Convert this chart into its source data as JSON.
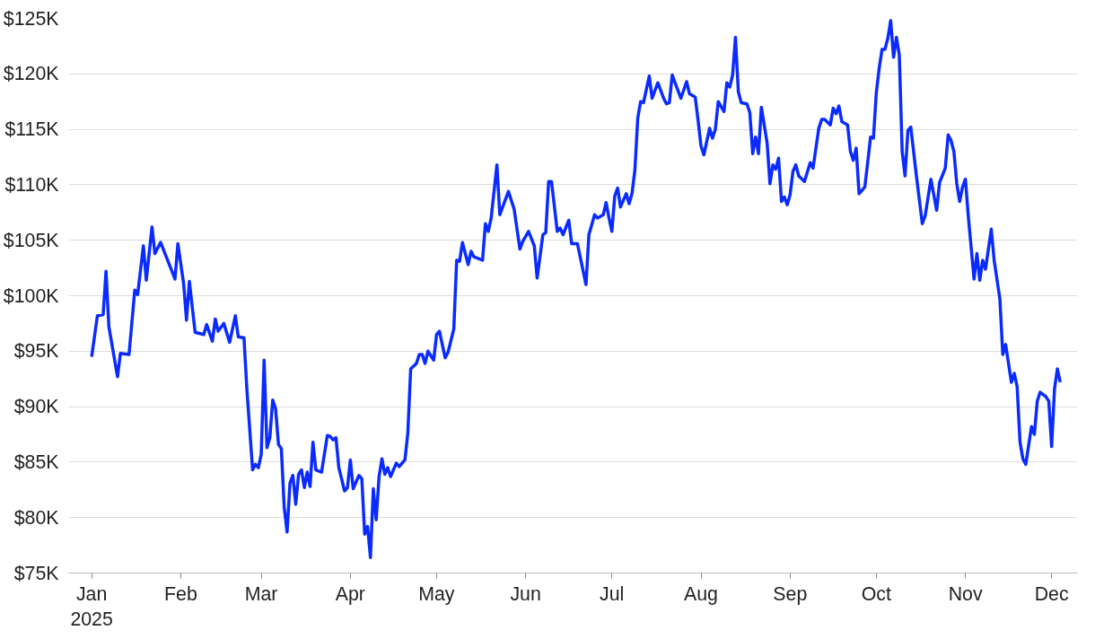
{
  "chart_data": {
    "type": "line",
    "xlim": [
      "2024-12-24",
      "2025-12-10"
    ],
    "ylim": [
      75,
      125
    ],
    "xticks": [
      {
        "value": "2025-01-01",
        "label": "Jan\n2025"
      },
      {
        "value": "2025-02-01",
        "label": "Feb"
      },
      {
        "value": "2025-03-01",
        "label": "Mar"
      },
      {
        "value": "2025-04-01",
        "label": "Apr"
      },
      {
        "value": "2025-05-01",
        "label": "May"
      },
      {
        "value": "2025-06-01",
        "label": "Jun"
      },
      {
        "value": "2025-07-01",
        "label": "Jul"
      },
      {
        "value": "2025-08-01",
        "label": "Aug"
      },
      {
        "value": "2025-09-01",
        "label": "Sep"
      },
      {
        "value": "2025-10-01",
        "label": "Oct"
      },
      {
        "value": "2025-11-01",
        "label": "Nov"
      },
      {
        "value": "2025-12-01",
        "label": "Dec"
      }
    ],
    "yticks": [
      {
        "value": 75,
        "label": "$75K"
      },
      {
        "value": 80,
        "label": "$80K"
      },
      {
        "value": 85,
        "label": "$85K"
      },
      {
        "value": 90,
        "label": "$90K"
      },
      {
        "value": 95,
        "label": "$95K"
      },
      {
        "value": 100,
        "label": "$100K"
      },
      {
        "value": 105,
        "label": "$105K"
      },
      {
        "value": 110,
        "label": "$110K"
      },
      {
        "value": 115,
        "label": "$115K"
      },
      {
        "value": 120,
        "label": "$120K"
      },
      {
        "value": 125,
        "label": "$125K"
      }
    ],
    "grid": "y",
    "marker": "none",
    "line_style": "solid",
    "series": [
      {
        "color": "#0a2bff",
        "x": [
          "2025-01-01",
          "2025-01-03",
          "2025-01-05",
          "2025-01-06",
          "2025-01-07",
          "2025-01-10",
          "2025-01-11",
          "2025-01-14",
          "2025-01-16",
          "2025-01-17",
          "2025-01-19",
          "2025-01-20",
          "2025-01-22",
          "2025-01-23",
          "2025-01-25",
          "2025-01-30",
          "2025-01-31",
          "2025-02-02",
          "2025-02-03",
          "2025-02-04",
          "2025-02-06",
          "2025-02-09",
          "2025-02-10",
          "2025-02-12",
          "2025-02-13",
          "2025-02-14",
          "2025-02-16",
          "2025-02-18",
          "2025-02-20",
          "2025-02-21",
          "2025-02-23",
          "2025-02-24",
          "2025-02-26",
          "2025-02-27",
          "2025-02-28",
          "2025-03-01",
          "2025-03-02",
          "2025-03-03",
          "2025-03-04",
          "2025-03-05",
          "2025-03-06",
          "2025-03-07",
          "2025-03-08",
          "2025-03-09",
          "2025-03-10",
          "2025-03-11",
          "2025-03-12",
          "2025-03-13",
          "2025-03-14",
          "2025-03-15",
          "2025-03-16",
          "2025-03-17",
          "2025-03-18",
          "2025-03-19",
          "2025-03-20",
          "2025-03-22",
          "2025-03-24",
          "2025-03-25",
          "2025-03-26",
          "2025-03-27",
          "2025-03-28",
          "2025-03-30",
          "2025-03-31",
          "2025-04-01",
          "2025-04-02",
          "2025-04-04",
          "2025-04-05",
          "2025-04-06",
          "2025-04-07",
          "2025-04-08",
          "2025-04-09",
          "2025-04-10",
          "2025-04-11",
          "2025-04-12",
          "2025-04-13",
          "2025-04-14",
          "2025-04-15",
          "2025-04-17",
          "2025-04-18",
          "2025-04-20",
          "2025-04-21",
          "2025-04-22",
          "2025-04-24",
          "2025-04-25",
          "2025-04-26",
          "2025-04-27",
          "2025-04-28",
          "2025-04-30",
          "2025-05-01",
          "2025-05-02",
          "2025-05-04",
          "2025-05-05",
          "2025-05-07",
          "2025-05-08",
          "2025-05-09",
          "2025-05-10",
          "2025-05-12",
          "2025-05-13",
          "2025-05-14",
          "2025-05-17",
          "2025-05-18",
          "2025-05-19",
          "2025-05-20",
          "2025-05-22",
          "2025-05-23",
          "2025-05-26",
          "2025-05-28",
          "2025-05-30",
          "2025-05-31",
          "2025-06-02",
          "2025-06-04",
          "2025-06-05",
          "2025-06-07",
          "2025-06-08",
          "2025-06-09",
          "2025-06-10",
          "2025-06-12",
          "2025-06-13",
          "2025-06-14",
          "2025-06-16",
          "2025-06-17",
          "2025-06-19",
          "2025-06-22",
          "2025-06-23",
          "2025-06-25",
          "2025-06-26",
          "2025-06-28",
          "2025-06-29",
          "2025-06-30",
          "2025-07-01",
          "2025-07-02",
          "2025-07-03",
          "2025-07-04",
          "2025-07-06",
          "2025-07-07",
          "2025-07-08",
          "2025-07-09",
          "2025-07-10",
          "2025-07-11",
          "2025-07-12",
          "2025-07-14",
          "2025-07-15",
          "2025-07-17",
          "2025-07-19",
          "2025-07-20",
          "2025-07-21",
          "2025-07-22",
          "2025-07-25",
          "2025-07-27",
          "2025-07-28",
          "2025-07-30",
          "2025-07-31",
          "2025-08-01",
          "2025-08-02",
          "2025-08-04",
          "2025-08-05",
          "2025-08-06",
          "2025-08-07",
          "2025-08-09",
          "2025-08-10",
          "2025-08-11",
          "2025-08-12",
          "2025-08-13",
          "2025-08-14",
          "2025-08-15",
          "2025-08-17",
          "2025-08-18",
          "2025-08-19",
          "2025-08-20",
          "2025-08-21",
          "2025-08-22",
          "2025-08-24",
          "2025-08-25",
          "2025-08-26",
          "2025-08-27",
          "2025-08-28",
          "2025-08-29",
          "2025-08-30",
          "2025-08-31",
          "2025-09-01",
          "2025-09-02",
          "2025-09-03",
          "2025-09-04",
          "2025-09-06",
          "2025-09-08",
          "2025-09-09",
          "2025-09-11",
          "2025-09-12",
          "2025-09-13",
          "2025-09-15",
          "2025-09-16",
          "2025-09-17",
          "2025-09-18",
          "2025-09-19",
          "2025-09-21",
          "2025-09-22",
          "2025-09-23",
          "2025-09-24",
          "2025-09-25",
          "2025-09-27",
          "2025-09-28",
          "2025-09-29",
          "2025-09-30",
          "2025-10-01",
          "2025-10-02",
          "2025-10-03",
          "2025-10-04",
          "2025-10-05",
          "2025-10-06",
          "2025-10-07",
          "2025-10-08",
          "2025-10-09",
          "2025-10-10",
          "2025-10-11",
          "2025-10-12",
          "2025-10-13",
          "2025-10-15",
          "2025-10-17",
          "2025-10-18",
          "2025-10-20",
          "2025-10-22",
          "2025-10-23",
          "2025-10-25",
          "2025-10-26",
          "2025-10-27",
          "2025-10-28",
          "2025-10-29",
          "2025-10-30",
          "2025-10-31",
          "2025-11-01",
          "2025-11-02",
          "2025-11-04",
          "2025-11-05",
          "2025-11-06",
          "2025-11-07",
          "2025-11-08",
          "2025-11-10",
          "2025-11-11",
          "2025-11-13",
          "2025-11-14",
          "2025-11-15",
          "2025-11-17",
          "2025-11-18",
          "2025-11-19",
          "2025-11-20",
          "2025-11-21",
          "2025-11-22",
          "2025-11-24",
          "2025-11-25",
          "2025-11-26",
          "2025-11-27",
          "2025-11-29",
          "2025-11-30",
          "2025-12-01",
          "2025-12-02",
          "2025-12-03",
          "2025-12-04"
        ],
        "values": [
          94.5,
          98.2,
          98.3,
          102.2,
          97.2,
          92.7,
          94.8,
          94.7,
          100.5,
          100.1,
          104.5,
          101.4,
          106.2,
          103.8,
          104.8,
          101.5,
          104.7,
          101.1,
          97.8,
          101.3,
          96.7,
          96.5,
          97.4,
          95.9,
          97.9,
          96.8,
          97.5,
          95.8,
          98.2,
          96.3,
          96.2,
          91.6,
          84.3,
          84.8,
          84.5,
          85.7,
          94.2,
          86.3,
          87.2,
          90.6,
          89.8,
          86.6,
          86.2,
          80.9,
          78.7,
          83.1,
          83.8,
          81.2,
          83.9,
          84.3,
          82.7,
          84.1,
          82.8,
          86.8,
          84.3,
          84.1,
          87.4,
          87.3,
          87.0,
          87.2,
          84.5,
          82.4,
          82.7,
          85.2,
          82.6,
          83.8,
          83.5,
          78.5,
          79.2,
          76.4,
          82.6,
          79.8,
          83.7,
          85.3,
          83.9,
          84.5,
          83.7,
          84.9,
          84.6,
          85.2,
          87.6,
          93.4,
          93.9,
          94.7,
          94.7,
          93.9,
          95.0,
          94.2,
          96.5,
          96.8,
          94.4,
          94.9,
          97.0,
          103.2,
          103.1,
          104.8,
          102.8,
          104.0,
          103.5,
          103.2,
          106.5,
          105.8,
          107.0,
          111.8,
          107.3,
          109.4,
          107.8,
          104.2,
          104.9,
          105.8,
          104.5,
          101.6,
          105.5,
          105.7,
          110.3,
          110.3,
          105.8,
          106.1,
          105.5,
          106.8,
          104.7,
          104.7,
          101.0,
          105.5,
          107.3,
          107.0,
          107.3,
          108.4,
          107.0,
          105.8,
          109.0,
          109.7,
          108.0,
          109.2,
          108.3,
          109.2,
          111.3,
          116.0,
          117.5,
          117.4,
          119.8,
          117.8,
          119.2,
          117.8,
          117.3,
          117.4,
          119.9,
          117.8,
          119.3,
          118.2,
          117.9,
          115.8,
          113.5,
          112.7,
          115.1,
          114.2,
          115.0,
          117.5,
          116.6,
          119.2,
          118.8,
          119.9,
          123.3,
          118.4,
          117.4,
          117.3,
          116.5,
          112.8,
          114.3,
          112.8,
          117.0,
          113.8,
          110.1,
          111.8,
          111.4,
          112.4,
          108.5,
          108.9,
          108.2,
          109.1,
          111.2,
          111.8,
          110.8,
          110.3,
          112.0,
          111.5,
          115.1,
          115.9,
          115.9,
          115.4,
          116.9,
          116.4,
          117.1,
          115.7,
          115.4,
          113.0,
          112.2,
          113.3,
          109.2,
          109.8,
          112.0,
          114.3,
          114.2,
          118.3,
          120.5,
          122.2,
          122.2,
          123.2,
          124.8,
          121.5,
          123.3,
          121.7,
          113.0,
          110.8,
          114.9,
          115.2,
          110.7,
          106.5,
          107.2,
          110.5,
          107.7,
          110.2,
          111.5,
          114.5,
          114.0,
          113.0,
          110.1,
          108.5,
          109.8,
          110.5,
          107.2,
          101.5,
          103.8,
          101.4,
          103.2,
          102.4,
          106.0,
          103.2,
          99.7,
          94.7,
          95.6,
          92.2,
          93.0,
          91.8,
          86.8,
          85.3,
          84.8,
          88.2,
          87.5,
          90.5,
          91.3,
          90.9,
          90.5,
          86.4,
          91.6,
          93.4,
          92.2
        ]
      }
    ]
  }
}
